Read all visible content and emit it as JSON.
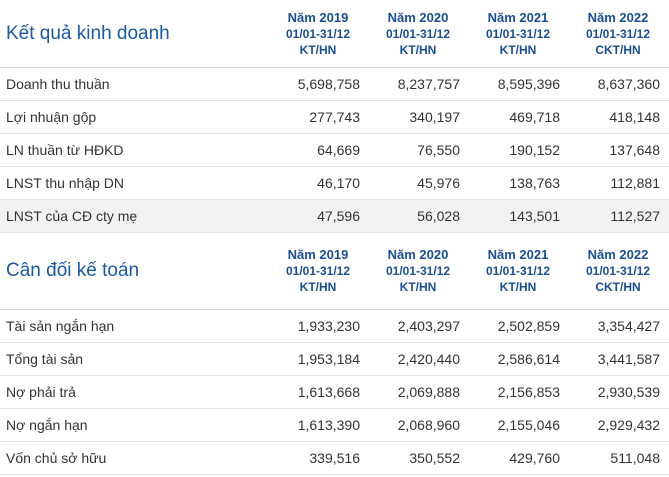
{
  "sections": [
    {
      "title": "Kết quả kinh doanh",
      "columns": [
        {
          "year": "Năm 2019",
          "period": "01/01-31/12",
          "type": "KT/HN"
        },
        {
          "year": "Năm 2020",
          "period": "01/01-31/12",
          "type": "KT/HN"
        },
        {
          "year": "Năm 2021",
          "period": "01/01-31/12",
          "type": "KT/HN"
        },
        {
          "year": "Năm 2022",
          "period": "01/01-31/12",
          "type": "CKT/HN"
        }
      ],
      "rows": [
        {
          "label": "Doanh thu thuần",
          "values": [
            "5,698,758",
            "8,237,757",
            "8,595,396",
            "8,637,360"
          ]
        },
        {
          "label": "Lợi nhuận gộp",
          "values": [
            "277,743",
            "340,197",
            "469,718",
            "418,148"
          ]
        },
        {
          "label": "LN thuần từ HĐKD",
          "values": [
            "64,669",
            "76,550",
            "190,152",
            "137,648"
          ]
        },
        {
          "label": "LNST thu nhập DN",
          "values": [
            "46,170",
            "45,976",
            "138,763",
            "112,881"
          ]
        },
        {
          "label": "LNST của CĐ cty mẹ",
          "values": [
            "47,596",
            "56,028",
            "143,501",
            "112,527"
          ]
        }
      ]
    },
    {
      "title": "Cân đối kế toán",
      "columns": [
        {
          "year": "Năm 2019",
          "period": "01/01-31/12",
          "type": "KT/HN"
        },
        {
          "year": "Năm 2020",
          "period": "01/01-31/12",
          "type": "KT/HN"
        },
        {
          "year": "Năm 2021",
          "period": "01/01-31/12",
          "type": "KT/HN"
        },
        {
          "year": "Năm 2022",
          "period": "01/01-31/12",
          "type": "CKT/HN"
        }
      ],
      "rows": [
        {
          "label": "Tài sản ngắn hạn",
          "values": [
            "1,933,230",
            "2,403,297",
            "2,502,859",
            "3,354,427"
          ]
        },
        {
          "label": "Tổng tài sản",
          "values": [
            "1,953,184",
            "2,420,440",
            "2,586,614",
            "3,441,587"
          ]
        },
        {
          "label": "Nợ phải trả",
          "values": [
            "1,613,668",
            "2,069,888",
            "2,156,853",
            "2,930,539"
          ]
        },
        {
          "label": "Nợ ngắn hạn",
          "values": [
            "1,613,390",
            "2,068,960",
            "2,155,046",
            "2,929,432"
          ]
        },
        {
          "label": "Vốn chủ sở hữu",
          "values": [
            "339,516",
            "350,552",
            "429,760",
            "511,048"
          ]
        }
      ]
    }
  ]
}
